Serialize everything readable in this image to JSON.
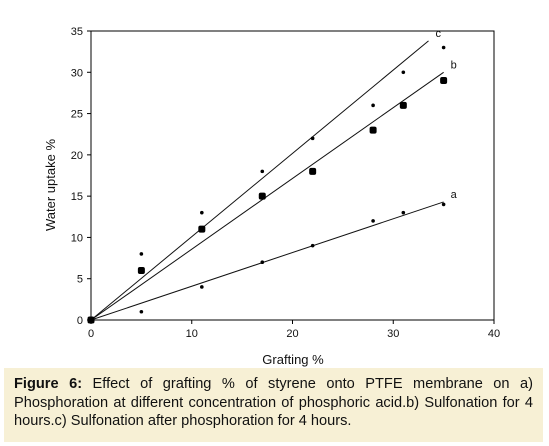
{
  "chart_data": {
    "type": "scatter",
    "xlabel": "Grafting %",
    "ylabel": "Water uptake %",
    "xlim": [
      0,
      40
    ],
    "ylim": [
      0,
      35
    ],
    "xticks": [
      0,
      10,
      20,
      30,
      40
    ],
    "yticks": [
      0,
      5,
      10,
      15,
      20,
      25,
      30,
      35
    ],
    "grid": false,
    "series": [
      {
        "name": "a",
        "marker": "small",
        "points": [
          [
            0,
            0
          ],
          [
            5,
            1
          ],
          [
            11,
            4
          ],
          [
            17,
            7
          ],
          [
            22,
            9
          ],
          [
            28,
            12
          ],
          [
            31,
            13
          ],
          [
            35,
            14
          ]
        ],
        "trendline": [
          [
            0,
            0
          ],
          [
            35,
            14.3
          ]
        ]
      },
      {
        "name": "b",
        "marker": "large",
        "points": [
          [
            0,
            0
          ],
          [
            5,
            6
          ],
          [
            11,
            11
          ],
          [
            17,
            15
          ],
          [
            22,
            18
          ],
          [
            28,
            23
          ],
          [
            31,
            26
          ],
          [
            35,
            29
          ]
        ],
        "trendline": [
          [
            0,
            0
          ],
          [
            35,
            30
          ]
        ]
      },
      {
        "name": "c",
        "marker": "small",
        "points": [
          [
            0,
            0
          ],
          [
            5,
            8
          ],
          [
            11,
            13
          ],
          [
            17,
            18
          ],
          [
            22,
            22
          ],
          [
            28,
            26
          ],
          [
            31,
            30
          ],
          [
            35,
            33
          ]
        ],
        "trendline": [
          [
            0,
            0
          ],
          [
            33.5,
            33.8
          ]
        ]
      }
    ]
  },
  "caption": {
    "label": "Figure 6:",
    "text": " Effect of grafting % of styrene onto PTFE membrane on a) Phosphoration at different concentration of phosphoric acid.b) Sulfonation for 4 hours.c) Sulfonation after phosphoration for 4 hours."
  }
}
